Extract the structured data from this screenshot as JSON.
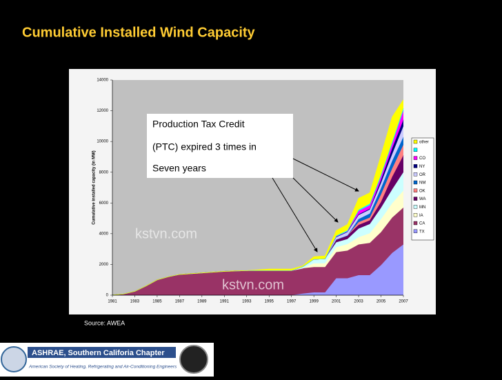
{
  "slide": {
    "title": "Cumulative Installed Wind Capacity",
    "source": "Source: AWEA",
    "footer_title": "ASHRAE, Southern Califoria Chapter",
    "footer_subtitle": "American Society of Heating, Refrigerating and Air-Conditioning Engineers",
    "watermarks": [
      "kstvn.com",
      "kstvn.com"
    ]
  },
  "chart_data": {
    "type": "stacked-area",
    "y_label": "Cumulative installed capacity (in MW)",
    "annotation": [
      "Production Tax Credit",
      "(PTC) expired 3 times in",
      "Seven years"
    ],
    "x": [
      1981,
      1982,
      1983,
      1984,
      1985,
      1986,
      1987,
      1988,
      1989,
      1990,
      1991,
      1992,
      1993,
      1994,
      1995,
      1996,
      1997,
      1998,
      1999,
      2000,
      2001,
      2002,
      2003,
      2004,
      2005,
      2006,
      2007
    ],
    "xlim": [
      1981,
      2007
    ],
    "xticks": [
      1981,
      1983,
      1985,
      1987,
      1989,
      1991,
      1993,
      1995,
      1997,
      1999,
      2001,
      2003,
      2005,
      2007
    ],
    "ylim": [
      0,
      14000
    ],
    "yticks": [
      0,
      2000,
      4000,
      6000,
      8000,
      10000,
      12000,
      14000
    ],
    "series": [
      {
        "name": "TX",
        "color": "#9999ff",
        "values": [
          0,
          0,
          0,
          0,
          0,
          0,
          0,
          0,
          0,
          0,
          0,
          0,
          0,
          0,
          0,
          0,
          0,
          100,
          180,
          180,
          1100,
          1100,
          1300,
          1300,
          1950,
          2750,
          3300
        ]
      },
      {
        "name": "CA",
        "color": "#993366",
        "values": [
          10,
          80,
          250,
          600,
          1000,
          1200,
          1350,
          1400,
          1450,
          1500,
          1550,
          1580,
          1600,
          1600,
          1600,
          1600,
          1600,
          1650,
          1650,
          1650,
          1700,
          1800,
          2000,
          2100,
          2150,
          2300,
          2400
        ]
      },
      {
        "name": "IA",
        "color": "#ffffcc",
        "values": [
          0,
          0,
          0,
          0,
          0,
          0,
          0,
          0,
          0,
          0,
          0,
          0,
          0,
          0,
          0,
          0,
          0,
          0,
          240,
          240,
          320,
          420,
          470,
          630,
          840,
          930,
          1100
        ]
      },
      {
        "name": "MN",
        "color": "#ccffff",
        "values": [
          0,
          0,
          0,
          0,
          0,
          0,
          0,
          0,
          0,
          0,
          0,
          0,
          0,
          0,
          0,
          0,
          0,
          100,
          270,
          290,
          320,
          330,
          560,
          600,
          740,
          900,
          1200
        ]
      },
      {
        "name": "WA",
        "color": "#660066",
        "values": [
          0,
          0,
          0,
          0,
          0,
          0,
          0,
          0,
          0,
          0,
          0,
          0,
          0,
          0,
          0,
          0,
          0,
          0,
          0,
          0,
          180,
          230,
          240,
          240,
          390,
          820,
          1100
        ]
      },
      {
        "name": "OK",
        "color": "#ff8080",
        "values": [
          0,
          0,
          0,
          0,
          0,
          0,
          0,
          0,
          0,
          0,
          0,
          0,
          0,
          0,
          0,
          0,
          0,
          0,
          0,
          0,
          0,
          0,
          180,
          180,
          480,
          540,
          690
        ]
      },
      {
        "name": "NM",
        "color": "#0066cc",
        "values": [
          0,
          0,
          0,
          0,
          0,
          0,
          0,
          0,
          0,
          0,
          0,
          0,
          0,
          0,
          0,
          0,
          0,
          0,
          0,
          0,
          0,
          0,
          200,
          260,
          410,
          500,
          500
        ]
      },
      {
        "name": "OR",
        "color": "#ccccff",
        "values": [
          0,
          0,
          0,
          0,
          0,
          0,
          0,
          0,
          0,
          0,
          0,
          0,
          0,
          0,
          0,
          0,
          0,
          0,
          0,
          0,
          150,
          220,
          260,
          260,
          340,
          440,
          700
        ]
      },
      {
        "name": "NY",
        "color": "#000080",
        "values": [
          0,
          0,
          0,
          0,
          0,
          0,
          0,
          0,
          0,
          0,
          0,
          0,
          0,
          0,
          0,
          0,
          0,
          0,
          0,
          0,
          50,
          50,
          50,
          50,
          190,
          370,
          420
        ]
      },
      {
        "name": "CO",
        "color": "#ff00ff",
        "values": [
          0,
          0,
          0,
          0,
          0,
          0,
          0,
          0,
          0,
          0,
          0,
          0,
          0,
          0,
          0,
          0,
          0,
          0,
          0,
          0,
          0,
          0,
          220,
          230,
          230,
          290,
          600
        ]
      },
      {
        "name": null,
        "color": "#00ffff",
        "values": [
          0,
          0,
          0,
          0,
          0,
          0,
          0,
          0,
          0,
          0,
          0,
          0,
          0,
          0,
          0,
          0,
          0,
          0,
          0,
          0,
          50,
          60,
          80,
          100,
          120,
          140,
          150
        ]
      },
      {
        "name": "other",
        "color": "#ffff00",
        "values": [
          0,
          0,
          0,
          0,
          0,
          0,
          0,
          0,
          0,
          0,
          0,
          0,
          0,
          50,
          100,
          100,
          100,
          50,
          160,
          190,
          330,
          390,
          740,
          710,
          1250,
          1620,
          550
        ]
      }
    ]
  }
}
